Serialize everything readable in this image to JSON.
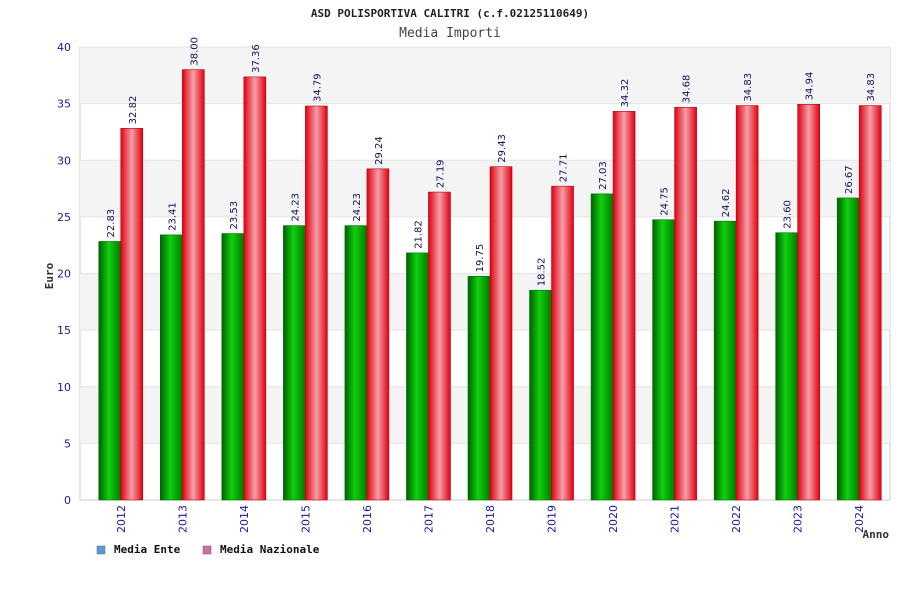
{
  "chart_data": {
    "type": "bar",
    "title": "ASD POLISPORTIVA CALITRI (c.f.02125110649)",
    "subtitle": "Media Importi",
    "xlabel": "Anno",
    "ylabel": "Euro",
    "ylim": [
      0,
      40
    ],
    "yticks": [
      0,
      5,
      10,
      15,
      20,
      25,
      30,
      35,
      40
    ],
    "grid": true,
    "legend_position": "bottom-left",
    "categories": [
      "2012",
      "2013",
      "2014",
      "2015",
      "2016",
      "2017",
      "2018",
      "2019",
      "2020",
      "2021",
      "2022",
      "2023",
      "2024"
    ],
    "series": [
      {
        "name": "Media Ente",
        "color": "#00b000",
        "legend_color": "#5b9bd5",
        "values": [
          22.83,
          23.41,
          23.53,
          24.23,
          24.23,
          21.82,
          19.75,
          18.52,
          27.03,
          24.75,
          24.62,
          23.6,
          26.67
        ],
        "labels": [
          "22.83",
          "23.41",
          "23.53",
          "24.23",
          "24.23",
          "21.82",
          "19.75",
          "18.52",
          "27.03",
          "24.75",
          "24.62",
          "23.60",
          "26.67"
        ]
      },
      {
        "name": "Media Nazionale",
        "color": "#e8101e",
        "legend_color": "#d46aa8",
        "values": [
          32.82,
          38.0,
          37.36,
          34.79,
          29.24,
          27.19,
          29.43,
          27.71,
          34.32,
          34.68,
          34.83,
          34.94,
          34.83
        ],
        "labels": [
          "32.82",
          "38.00",
          "37.36",
          "34.79",
          "29.24",
          "27.19",
          "29.43",
          "27.71",
          "34.32",
          "34.68",
          "34.83",
          "34.94",
          "34.83"
        ]
      }
    ]
  }
}
